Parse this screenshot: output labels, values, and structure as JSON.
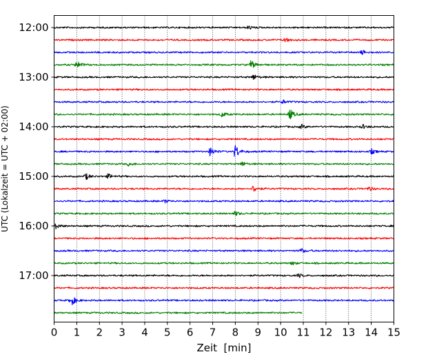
{
  "chart_data": {
    "type": "line",
    "title": "",
    "xlabel": "Zeit  [min]",
    "ylabel": "UTC (Lokalzeit = UTC + 02:00)",
    "xlim": [
      0,
      15
    ],
    "x_ticks": [
      0,
      1,
      2,
      3,
      4,
      5,
      6,
      7,
      8,
      9,
      10,
      11,
      12,
      13,
      14,
      15
    ],
    "y_tick_labels": [
      "12:00",
      "13:00",
      "14:00",
      "15:00",
      "16:00",
      "17:00"
    ],
    "grid": "vertical dotted lines at each minute",
    "row_interval_min": 15,
    "colors": [
      "#000000",
      "#ff0000",
      "#0000ff",
      "#008000"
    ],
    "series": [
      {
        "time": "12:00",
        "color": "#000000",
        "x": [
          0,
          15
        ],
        "events": [
          {
            "t": 8.6,
            "amp": 0.35
          }
        ]
      },
      {
        "time": "12:15",
        "color": "#ff0000",
        "x": [
          0,
          15
        ],
        "events": [
          {
            "t": 10.2,
            "amp": 0.45
          }
        ]
      },
      {
        "time": "12:30",
        "color": "#0000ff",
        "x": [
          0,
          15
        ],
        "events": [
          {
            "t": 13.6,
            "amp": 0.4
          }
        ]
      },
      {
        "time": "12:45",
        "color": "#008000",
        "x": [
          0,
          15
        ],
        "events": [
          {
            "t": 1.0,
            "amp": 0.75
          },
          {
            "t": 8.7,
            "amp": 0.8
          }
        ]
      },
      {
        "time": "13:00",
        "color": "#000000",
        "x": [
          0,
          15
        ],
        "events": [
          {
            "t": 8.8,
            "amp": 0.5
          }
        ]
      },
      {
        "time": "13:15",
        "color": "#ff0000",
        "x": [
          0,
          15
        ],
        "events": []
      },
      {
        "time": "13:30",
        "color": "#0000ff",
        "x": [
          0,
          15
        ],
        "events": [
          {
            "t": 10.1,
            "amp": 0.35
          }
        ]
      },
      {
        "time": "13:45",
        "color": "#008000",
        "x": [
          0,
          15
        ],
        "events": [
          {
            "t": 7.4,
            "amp": 0.5
          },
          {
            "t": 10.4,
            "amp": 1.0
          }
        ]
      },
      {
        "time": "14:00",
        "color": "#000000",
        "x": [
          0,
          15
        ],
        "events": [
          {
            "t": 10.9,
            "amp": 0.4
          },
          {
            "t": 13.6,
            "amp": 0.4
          }
        ]
      },
      {
        "time": "14:15",
        "color": "#ff0000",
        "x": [
          0,
          15
        ],
        "events": []
      },
      {
        "time": "14:30",
        "color": "#0000ff",
        "x": [
          0,
          15
        ],
        "events": [
          {
            "t": 6.9,
            "amp": 0.85
          },
          {
            "t": 8.0,
            "amp": 1.3
          },
          {
            "t": 14.0,
            "amp": 0.45
          }
        ]
      },
      {
        "time": "14:45",
        "color": "#008000",
        "x": [
          0,
          15
        ],
        "events": [
          {
            "t": 3.3,
            "amp": 0.35
          },
          {
            "t": 8.3,
            "amp": 0.4
          }
        ]
      },
      {
        "time": "15:00",
        "color": "#000000",
        "x": [
          0,
          15
        ],
        "events": [
          {
            "t": 1.4,
            "amp": 0.55
          },
          {
            "t": 2.4,
            "amp": 0.45
          }
        ]
      },
      {
        "time": "15:15",
        "color": "#ff0000",
        "x": [
          0,
          15
        ],
        "events": [
          {
            "t": 8.8,
            "amp": 0.65
          },
          {
            "t": 13.9,
            "amp": 0.35
          }
        ]
      },
      {
        "time": "15:30",
        "color": "#0000ff",
        "x": [
          0,
          15
        ],
        "events": [
          {
            "t": 4.9,
            "amp": 0.3
          }
        ]
      },
      {
        "time": "15:45",
        "color": "#008000",
        "x": [
          0,
          15
        ],
        "events": [
          {
            "t": 8.0,
            "amp": 0.4
          }
        ]
      },
      {
        "time": "16:00",
        "color": "#000000",
        "x": [
          0,
          15
        ],
        "events": [
          {
            "t": 0.1,
            "amp": 0.5
          }
        ]
      },
      {
        "time": "16:15",
        "color": "#ff0000",
        "x": [
          0,
          15
        ],
        "events": []
      },
      {
        "time": "16:30",
        "color": "#0000ff",
        "x": [
          0,
          15
        ],
        "events": [
          {
            "t": 10.9,
            "amp": 0.45
          }
        ]
      },
      {
        "time": "16:45",
        "color": "#008000",
        "x": [
          0,
          15
        ],
        "events": [
          {
            "t": 10.5,
            "amp": 0.3
          }
        ]
      },
      {
        "time": "17:00",
        "color": "#000000",
        "x": [
          0,
          15
        ],
        "events": [
          {
            "t": 10.8,
            "amp": 0.35
          }
        ]
      },
      {
        "time": "17:15",
        "color": "#ff0000",
        "x": [
          0,
          15
        ],
        "events": []
      },
      {
        "time": "17:30",
        "color": "#0000ff",
        "x": [
          0,
          15
        ],
        "events": [
          {
            "t": 0.75,
            "amp": 1.1
          }
        ]
      },
      {
        "time": "17:45",
        "color": "#008000",
        "x": [
          0,
          10.95
        ],
        "events": []
      }
    ]
  }
}
